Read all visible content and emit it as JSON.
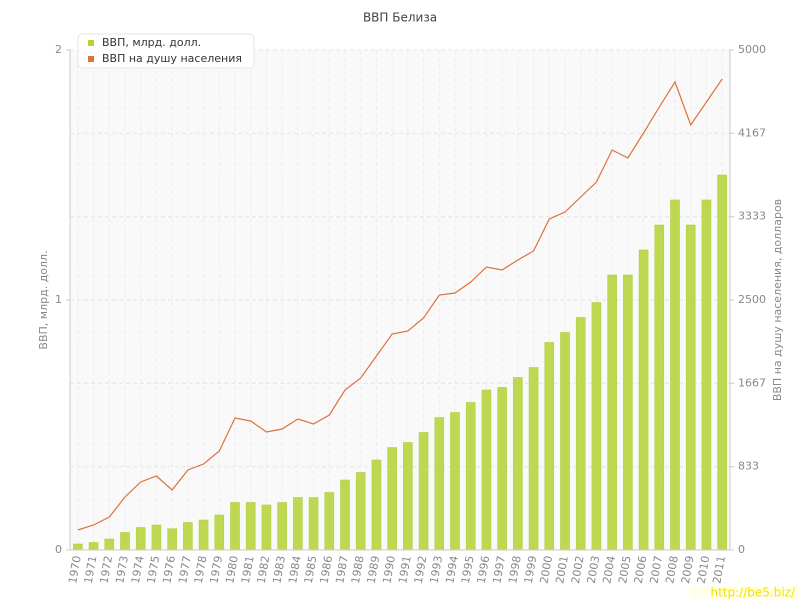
{
  "chart_data": {
    "type": "bar_line",
    "title": "ВВП Белиза",
    "y_label": "ВВП, млрд. долл.",
    "y2_label": "ВВП на душу населения, долларов",
    "categories": [
      "1970",
      "1971",
      "1972",
      "1973",
      "1974",
      "1975",
      "1976",
      "1977",
      "1978",
      "1979",
      "1980",
      "1981",
      "1982",
      "1983",
      "1984",
      "1985",
      "1986",
      "1987",
      "1988",
      "1989",
      "1990",
      "1991",
      "1992",
      "1993",
      "1994",
      "1995",
      "1996",
      "1997",
      "1998",
      "1999",
      "2000",
      "2001",
      "2002",
      "2003",
      "2004",
      "2005",
      "2006",
      "2007",
      "2008",
      "2009",
      "2010",
      "2011"
    ],
    "series": [
      {
        "name": "ВВП, млрд. долл.",
        "type": "bar",
        "color": "#b5d334",
        "values": [
          0.024,
          0.03,
          0.044,
          0.07,
          0.09,
          0.1,
          0.085,
          0.11,
          0.12,
          0.14,
          0.19,
          0.19,
          0.18,
          0.19,
          0.21,
          0.21,
          0.23,
          0.28,
          0.31,
          0.36,
          0.41,
          0.43,
          0.47,
          0.53,
          0.55,
          0.59,
          0.64,
          0.65,
          0.69,
          0.73,
          0.83,
          0.87,
          0.93,
          0.99,
          1.1,
          1.1,
          1.2,
          1.3,
          1.4,
          1.3,
          1.4,
          1.5
        ]
      },
      {
        "name": "ВВП на душу населения",
        "type": "line",
        "axis": "y2",
        "color": "#e0703c",
        "values": [
          200,
          250,
          330,
          530,
          680,
          740,
          600,
          800,
          860,
          990,
          1320,
          1290,
          1180,
          1210,
          1310,
          1260,
          1350,
          1600,
          1720,
          1940,
          2160,
          2190,
          2320,
          2550,
          2570,
          2680,
          2830,
          2800,
          2900,
          2990,
          3310,
          3380,
          3530,
          3680,
          4000,
          3920,
          4170,
          4430,
          4680,
          4250,
          4480,
          4710
        ]
      }
    ],
    "ylim": [
      0,
      2
    ],
    "yticks": [
      0,
      1,
      2
    ],
    "y2lim": [
      0,
      5000
    ],
    "y2ticks": [
      0,
      833,
      1667,
      2500,
      3333,
      4167,
      5000
    ],
    "grid": true,
    "legend": "top-left",
    "watermark": "http://be5.biz/"
  }
}
